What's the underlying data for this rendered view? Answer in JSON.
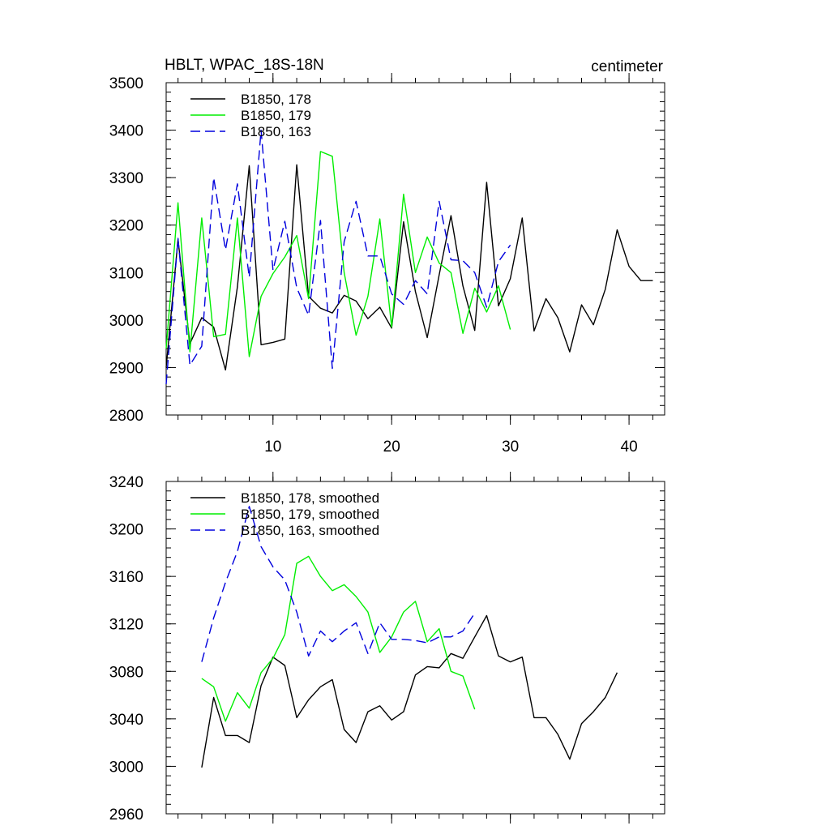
{
  "chart_data": [
    {
      "type": "line",
      "title": "HBLT, WPAC_18S-18N",
      "units": "centimeter",
      "xlim": [
        1,
        43
      ],
      "ylim": [
        2800,
        3500
      ],
      "xticks": [
        10,
        20,
        30,
        40
      ],
      "xtick_labels": [
        "10",
        "20",
        "30",
        "40"
      ],
      "yticks": [
        2800,
        2900,
        3000,
        3100,
        3200,
        3300,
        3400,
        3500
      ],
      "ytick_labels": [
        "2800",
        "2900",
        "3000",
        "3100",
        "3200",
        "3300",
        "3400",
        "3500"
      ],
      "legend_position": "top-left",
      "series": [
        {
          "name": "B1850, 178",
          "color": "#000000",
          "dash": "solid",
          "x": [
            1,
            2,
            3,
            4,
            5,
            6,
            7,
            8,
            9,
            10,
            11,
            12,
            13,
            14,
            15,
            16,
            17,
            18,
            19,
            20,
            21,
            22,
            23,
            24,
            25,
            26,
            27,
            28,
            29,
            30,
            31,
            32,
            33,
            34,
            35,
            36,
            37,
            38,
            39,
            40,
            41,
            42
          ],
          "values": [
            2900,
            3170,
            2950,
            3005,
            2985,
            2895,
            3070,
            3325,
            2948,
            2953,
            2960,
            3327,
            3050,
            3025,
            3015,
            3052,
            3040,
            3003,
            3027,
            2983,
            3207,
            3060,
            2963,
            3095,
            3220,
            3072,
            2978,
            3290,
            3030,
            3087,
            3215,
            2977,
            3045,
            3005,
            2933,
            3032,
            2990,
            3065,
            3190,
            3113,
            3083,
            3083
          ]
        },
        {
          "name": "B1850, 179",
          "color": "#00ee00",
          "dash": "solid",
          "x": [
            1,
            2,
            3,
            4,
            5,
            6,
            7,
            8,
            9,
            10,
            11,
            12,
            13,
            14,
            15,
            16,
            17,
            18,
            19,
            20,
            21,
            22,
            23,
            24,
            25,
            26,
            27,
            28,
            29,
            30
          ],
          "values": [
            2940,
            3247,
            2933,
            3215,
            2965,
            2970,
            3215,
            2923,
            3050,
            3098,
            3133,
            3178,
            3045,
            3355,
            3345,
            3100,
            2968,
            3050,
            3213,
            2985,
            3265,
            3100,
            3175,
            3120,
            3100,
            2972,
            3067,
            3017,
            3072,
            2980
          ]
        },
        {
          "name": "B1850, 163",
          "color": "#0000dd",
          "dash": "dashed",
          "x": [
            1,
            2,
            3,
            4,
            5,
            6,
            7,
            8,
            9,
            10,
            11,
            12,
            13,
            14,
            15,
            16,
            17,
            18,
            19,
            20,
            21,
            22,
            23,
            24,
            25,
            26,
            27,
            28,
            29,
            30
          ],
          "values": [
            2865,
            3172,
            2905,
            2945,
            3300,
            3148,
            3287,
            3090,
            3400,
            3105,
            3208,
            3068,
            3010,
            3210,
            2898,
            3165,
            3250,
            3135,
            3135,
            3055,
            3033,
            3083,
            3055,
            3250,
            3127,
            3125,
            3100,
            3027,
            3123,
            3158
          ]
        }
      ]
    },
    {
      "type": "line",
      "title": "",
      "xlim": [
        1,
        43
      ],
      "ylim": [
        2960,
        3240
      ],
      "xticks": [
        10,
        20,
        30,
        40
      ],
      "xtick_labels": [],
      "yticks": [
        2960,
        3000,
        3040,
        3080,
        3120,
        3160,
        3200,
        3240
      ],
      "ytick_labels": [
        "2960",
        "3000",
        "3040",
        "3080",
        "3120",
        "3160",
        "3200",
        "3240"
      ],
      "legend_position": "top-left",
      "series": [
        {
          "name": "B1850, 178, smoothed",
          "color": "#000000",
          "dash": "solid",
          "x": [
            4,
            5,
            6,
            7,
            8,
            9,
            10,
            11,
            12,
            13,
            14,
            15,
            16,
            17,
            18,
            19,
            20,
            21,
            22,
            23,
            24,
            25,
            26,
            27,
            28,
            29,
            30,
            31,
            32,
            33,
            34,
            35,
            36,
            37,
            38,
            39
          ],
          "values": [
            2999,
            3058,
            3026,
            3026,
            3020,
            3068,
            3092,
            3085,
            3041,
            3056,
            3067,
            3073,
            3031,
            3020,
            3046,
            3051,
            3039,
            3046,
            3077,
            3084,
            3083,
            3095,
            3091,
            3109,
            3127,
            3093,
            3088,
            3092,
            3041,
            3041,
            3027,
            3006,
            3036,
            3046,
            3058,
            3079
          ]
        },
        {
          "name": "B1850, 179, smoothed",
          "color": "#00ee00",
          "dash": "solid",
          "x": [
            4,
            5,
            6,
            7,
            8,
            9,
            10,
            11,
            12,
            13,
            14,
            15,
            16,
            17,
            18,
            19,
            20,
            21,
            22,
            23,
            24,
            25,
            26,
            27
          ],
          "values": [
            3074,
            3067,
            3038,
            3062,
            3049,
            3079,
            3091,
            3111,
            3171,
            3177,
            3160,
            3148,
            3153,
            3143,
            3130,
            3096,
            3109,
            3130,
            3139,
            3105,
            3116,
            3080,
            3076,
            3048
          ]
        },
        {
          "name": "B1850, 163, smoothed",
          "color": "#0000dd",
          "dash": "dashed",
          "x": [
            4,
            5,
            6,
            7,
            8,
            9,
            10,
            11,
            12,
            13,
            14,
            15,
            16,
            17,
            18,
            19,
            20,
            21,
            22,
            23,
            24,
            25,
            26,
            27
          ],
          "values": [
            3088,
            3125,
            3155,
            3181,
            3219,
            3185,
            3168,
            3157,
            3130,
            3093,
            3114,
            3105,
            3114,
            3121,
            3095,
            3121,
            3107,
            3107,
            3106,
            3104,
            3109,
            3109,
            3114,
            3129
          ]
        }
      ]
    }
  ]
}
